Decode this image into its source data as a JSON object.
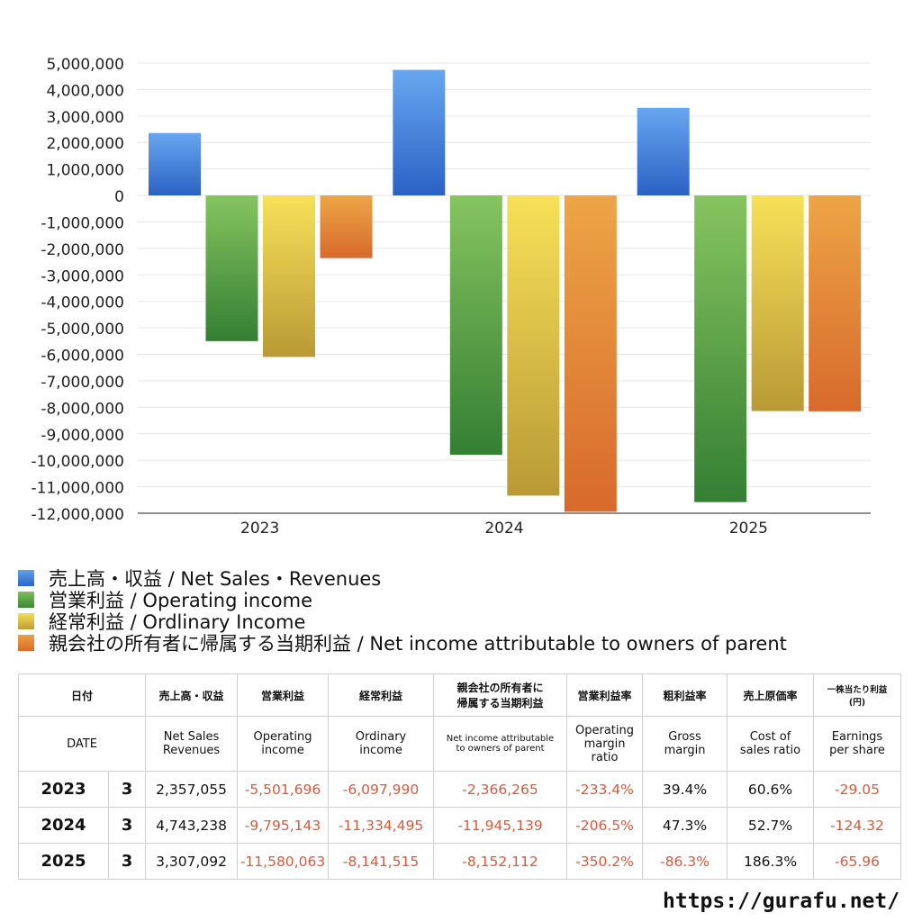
{
  "chart_data": {
    "type": "bar",
    "categories": [
      "2023",
      "2024",
      "2025"
    ],
    "series": [
      {
        "name": "売上高・収益 / Net Sales・Revenues",
        "values": [
          2357055,
          4743238,
          3307092
        ],
        "color": "#3d7fd9"
      },
      {
        "name": "営業利益 / Operating income",
        "values": [
          -5501696,
          -9795143,
          -11580063
        ],
        "color": "#4f9a3f"
      },
      {
        "name": "経常利益 / Ordlinary Income",
        "values": [
          -6097990,
          -11334495,
          -8141515
        ],
        "color": "#d8bf3d"
      },
      {
        "name": "親会社の所有者に帰属する当期利益 / Net income attributable to owners of parent",
        "values": [
          -2366265,
          -11945139,
          -8152112
        ],
        "color": "#e07f34"
      }
    ],
    "ylim": [
      -12000000,
      5000000
    ],
    "yticks": [
      5000000,
      4000000,
      3000000,
      2000000,
      1000000,
      0,
      -1000000,
      -2000000,
      -3000000,
      -4000000,
      -5000000,
      -6000000,
      -7000000,
      -8000000,
      -9000000,
      -10000000,
      -11000000,
      -12000000
    ],
    "ytick_labels": [
      "5,000,000",
      "4,000,000",
      "3,000,000",
      "2,000,000",
      "1,000,000",
      "0",
      "-1,000,000",
      "-2,000,000",
      "-3,000,000",
      "-4,000,000",
      "-5,000,000",
      "-6,000,000",
      "-7,000,000",
      "-8,000,000",
      "-9,000,000",
      "-10,000,000",
      "-11,000,000",
      "-12,000,000"
    ],
    "grid": true,
    "legend_position": "bottom"
  },
  "legend": [
    {
      "label": "売上高・収益 / Net Sales・Revenues",
      "color": "#3d7fd9"
    },
    {
      "label": "営業利益 / Operating income",
      "color": "#4f9a3f"
    },
    {
      "label": "経常利益 / Ordlinary Income",
      "color": "#d8bf3d"
    },
    {
      "label": "親会社の所有者に帰属する当期利益 / Net income attributable to owners of parent",
      "color": "#e07f34"
    }
  ],
  "table": {
    "header_jp": {
      "date": "日付",
      "sales": "売上高・収益",
      "operating": "営業利益",
      "ordinary": "経常利益",
      "net_line1": "親会社の所有者に",
      "net_line2": "帰属する当期利益",
      "op_margin": "営業利益率",
      "gross_margin": "粗利益率",
      "cost_ratio": "売上原価率",
      "eps_line1": "一株当たり利益",
      "eps_line2": "(円)"
    },
    "header_en": {
      "date": "DATE",
      "sales_line1": "Net Sales",
      "sales_line2": "Revenues",
      "operating_line1": "Operating",
      "operating_line2": "income",
      "ordinary_line1": "Ordinary",
      "ordinary_line2": "income",
      "net_line1": "Net income attributable",
      "net_line2": "to owners of parent",
      "op_margin_line1": "Operating",
      "op_margin_line2": "margin",
      "op_margin_line3": "ratio",
      "gross_line1": "Gross",
      "gross_line2": "margin",
      "cost_line1": "Cost of",
      "cost_line2": "sales ratio",
      "eps_line1": "Earnings",
      "eps_line2": "per share"
    },
    "rows": [
      {
        "year": "2023",
        "month": "3",
        "sales": "2,357,055",
        "operating": "-5,501,696",
        "ordinary": "-6,097,990",
        "net": "-2,366,265",
        "op_margin": "-233.4%",
        "gross_margin": "39.4%",
        "cost_ratio": "60.6%",
        "eps": "-29.05"
      },
      {
        "year": "2024",
        "month": "3",
        "sales": "4,743,238",
        "operating": "-9,795,143",
        "ordinary": "-11,334,495",
        "net": "-11,945,139",
        "op_margin": "-206.5%",
        "gross_margin": "47.3%",
        "cost_ratio": "52.7%",
        "eps": "-124.32"
      },
      {
        "year": "2025",
        "month": "3",
        "sales": "3,307,092",
        "operating": "-11,580,063",
        "ordinary": "-8,141,515",
        "net": "-8,152,112",
        "op_margin": "-350.2%",
        "gross_margin": "-86.3%",
        "cost_ratio": "186.3%",
        "eps": "-65.96"
      }
    ]
  },
  "footer": {
    "url": "https://gurafu.net/"
  }
}
